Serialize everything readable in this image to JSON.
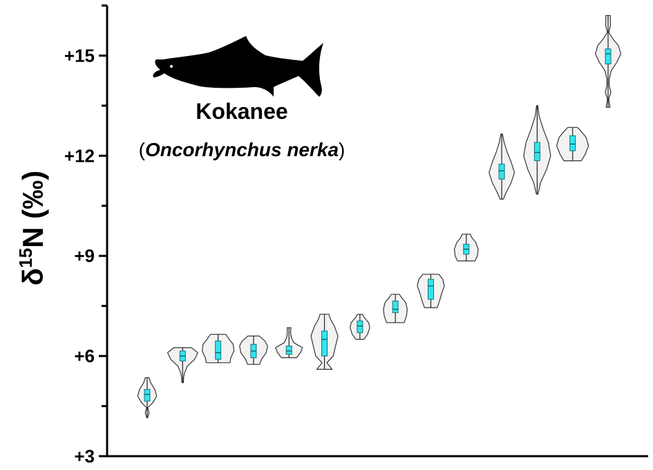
{
  "chart_data": {
    "type": "violin",
    "ylabel": {
      "symbol": "δ",
      "superscript": "15",
      "element": "N",
      "unit": "(‰)"
    },
    "ylim": [
      3,
      16.5
    ],
    "yticks": [
      {
        "value": 3,
        "label": "+3"
      },
      {
        "value": 6,
        "label": "+6"
      },
      {
        "value": 9,
        "label": "+9"
      },
      {
        "value": 12,
        "label": "+12"
      },
      {
        "value": 15,
        "label": "+15"
      }
    ],
    "yminor": [
      4.5,
      7.5,
      10.5,
      13.5,
      16.5
    ],
    "annotation": {
      "common_name": "Kokanee",
      "scientific_name": "Oncorhynchus nerka",
      "open_paren": "(",
      "close_paren": ")",
      "icon": "salmon-silhouette-icon"
    },
    "colors": {
      "violin_fill": "#f2f2f2",
      "violin_stroke": "#333333",
      "box_fill": "#33e5ee",
      "box_stroke": "#1a6f77"
    },
    "violins": [
      {
        "min": 4.15,
        "max": 5.35,
        "q1": 4.65,
        "median": 4.85,
        "q3": 5.0,
        "profile": [
          [
            4.15,
            0.02
          ],
          [
            4.3,
            0.12
          ],
          [
            4.45,
            0.03
          ],
          [
            4.6,
            0.35
          ],
          [
            4.8,
            0.6
          ],
          [
            5.0,
            0.48
          ],
          [
            5.2,
            0.22
          ],
          [
            5.35,
            0.12
          ]
        ]
      },
      {
        "min": 5.2,
        "max": 6.25,
        "q1": 5.85,
        "median": 6.0,
        "q3": 6.15,
        "profile": [
          [
            5.2,
            0.05
          ],
          [
            5.35,
            0.06
          ],
          [
            5.5,
            0.12
          ],
          [
            5.7,
            0.3
          ],
          [
            5.9,
            0.75
          ],
          [
            6.1,
            0.95
          ],
          [
            6.25,
            0.55
          ]
        ]
      },
      {
        "min": 5.8,
        "max": 6.65,
        "q1": 5.9,
        "median": 6.1,
        "q3": 6.45,
        "profile": [
          [
            5.8,
            0.75
          ],
          [
            5.95,
            0.8
          ],
          [
            6.15,
            1.0
          ],
          [
            6.35,
            0.95
          ],
          [
            6.5,
            0.7
          ],
          [
            6.65,
            0.48
          ]
        ]
      },
      {
        "min": 5.75,
        "max": 6.6,
        "q1": 5.95,
        "median": 6.15,
        "q3": 6.35,
        "profile": [
          [
            5.75,
            0.38
          ],
          [
            5.9,
            0.5
          ],
          [
            6.1,
            0.8
          ],
          [
            6.3,
            0.88
          ],
          [
            6.45,
            0.72
          ],
          [
            6.6,
            0.35
          ]
        ]
      },
      {
        "min": 5.95,
        "max": 6.85,
        "q1": 6.05,
        "median": 6.15,
        "q3": 6.3,
        "profile": [
          [
            5.95,
            0.48
          ],
          [
            6.1,
            0.72
          ],
          [
            6.25,
            0.85
          ],
          [
            6.4,
            0.3
          ],
          [
            6.55,
            0.15
          ],
          [
            6.7,
            0.1
          ],
          [
            6.85,
            0.12
          ]
        ]
      },
      {
        "min": 5.6,
        "max": 7.25,
        "q1": 6.0,
        "median": 6.5,
        "q3": 6.75,
        "profile": [
          [
            5.6,
            0.48
          ],
          [
            5.8,
            0.15
          ],
          [
            6.0,
            0.55
          ],
          [
            6.3,
            0.7
          ],
          [
            6.6,
            0.85
          ],
          [
            6.9,
            0.62
          ],
          [
            7.1,
            0.38
          ],
          [
            7.25,
            0.28
          ]
        ]
      },
      {
        "min": 6.5,
        "max": 7.25,
        "q1": 6.7,
        "median": 6.9,
        "q3": 7.05,
        "profile": [
          [
            6.5,
            0.25
          ],
          [
            6.65,
            0.48
          ],
          [
            6.85,
            0.62
          ],
          [
            7.0,
            0.55
          ],
          [
            7.15,
            0.28
          ],
          [
            7.25,
            0.15
          ]
        ]
      },
      {
        "min": 7.0,
        "max": 7.85,
        "q1": 7.3,
        "median": 7.4,
        "q3": 7.65,
        "profile": [
          [
            7.0,
            0.55
          ],
          [
            7.2,
            0.7
          ],
          [
            7.4,
            0.75
          ],
          [
            7.6,
            0.65
          ],
          [
            7.75,
            0.4
          ],
          [
            7.85,
            0.25
          ]
        ]
      },
      {
        "min": 7.45,
        "max": 8.45,
        "q1": 7.7,
        "median": 8.1,
        "q3": 8.3,
        "profile": [
          [
            7.45,
            0.4
          ],
          [
            7.65,
            0.55
          ],
          [
            7.9,
            0.7
          ],
          [
            8.1,
            0.85
          ],
          [
            8.3,
            0.75
          ],
          [
            8.45,
            0.5
          ]
        ]
      },
      {
        "min": 8.85,
        "max": 9.65,
        "q1": 9.05,
        "median": 9.2,
        "q3": 9.35,
        "profile": [
          [
            8.85,
            0.55
          ],
          [
            9.0,
            0.7
          ],
          [
            9.2,
            0.75
          ],
          [
            9.4,
            0.6
          ],
          [
            9.55,
            0.35
          ],
          [
            9.65,
            0.25
          ]
        ]
      },
      {
        "min": 10.7,
        "max": 12.65,
        "q1": 11.3,
        "median": 11.55,
        "q3": 11.75,
        "profile": [
          [
            10.7,
            0.1
          ],
          [
            10.9,
            0.28
          ],
          [
            11.2,
            0.6
          ],
          [
            11.5,
            0.8
          ],
          [
            11.8,
            0.6
          ],
          [
            12.1,
            0.35
          ],
          [
            12.4,
            0.15
          ],
          [
            12.65,
            0.05
          ]
        ]
      },
      {
        "min": 10.85,
        "max": 13.5,
        "q1": 11.85,
        "median": 12.1,
        "q3": 12.4,
        "profile": [
          [
            10.85,
            0.05
          ],
          [
            11.2,
            0.22
          ],
          [
            11.6,
            0.6
          ],
          [
            12.0,
            0.85
          ],
          [
            12.4,
            0.7
          ],
          [
            12.8,
            0.38
          ],
          [
            13.2,
            0.12
          ],
          [
            13.5,
            0.04
          ]
        ]
      },
      {
        "min": 11.85,
        "max": 12.85,
        "q1": 12.15,
        "median": 12.35,
        "q3": 12.6,
        "profile": [
          [
            11.85,
            0.55
          ],
          [
            12.05,
            0.8
          ],
          [
            12.3,
            1.0
          ],
          [
            12.55,
            0.85
          ],
          [
            12.75,
            0.5
          ],
          [
            12.85,
            0.3
          ]
        ]
      },
      {
        "min": 13.45,
        "max": 16.2,
        "q1": 14.75,
        "median": 15.05,
        "q3": 15.2,
        "profile": [
          [
            13.45,
            0.12
          ],
          [
            13.7,
            0.04
          ],
          [
            13.9,
            0.18
          ],
          [
            14.1,
            0.07
          ],
          [
            14.3,
            0.07
          ],
          [
            14.55,
            0.2
          ],
          [
            14.8,
            0.55
          ],
          [
            15.05,
            0.8
          ],
          [
            15.3,
            0.65
          ],
          [
            15.5,
            0.3
          ],
          [
            15.7,
            0.04
          ],
          [
            15.9,
            0.15
          ],
          [
            16.2,
            0.14
          ]
        ]
      }
    ]
  }
}
